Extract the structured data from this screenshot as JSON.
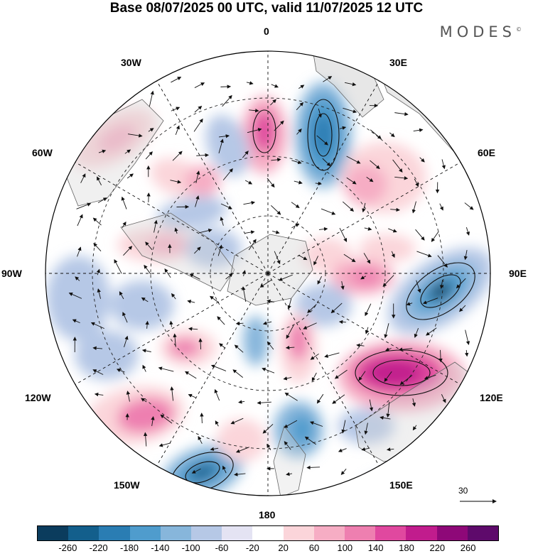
{
  "title": "Base 08/07/2025 00 UTC, valid 11/07/2025 12 UTC",
  "brand": "MODES",
  "brand_mark": "©",
  "longitude_labels": {
    "top": "0",
    "top_left": "30W",
    "top_right": "30E",
    "upper_left": "60W",
    "upper_right": "60E",
    "left": "90W",
    "right": "90E",
    "lower_left": "120W",
    "lower_right": "120E",
    "bottom_left": "150W",
    "bottom_right": "150E",
    "bottom": "180"
  },
  "wind_reference": "30",
  "colorbar": {
    "ticks": [
      "-260",
      "-220",
      "-180",
      "-140",
      "-100",
      "-60",
      "-20",
      "20",
      "60",
      "100",
      "140",
      "180",
      "220",
      "260"
    ],
    "colors": [
      "#0b3c5d",
      "#135f8c",
      "#2a7db3",
      "#4f9ccd",
      "#87b6db",
      "#b6c8e6",
      "#e4e3f3",
      "#ffffff",
      "#fbd5da",
      "#f6adc4",
      "#ee7fb0",
      "#e0489f",
      "#c11c8d",
      "#8e0878",
      "#5e0a6b"
    ]
  },
  "map_style": {
    "projection": "south polar stereographic",
    "graticule": "dashed",
    "land_color": "#d9d9d9"
  }
}
